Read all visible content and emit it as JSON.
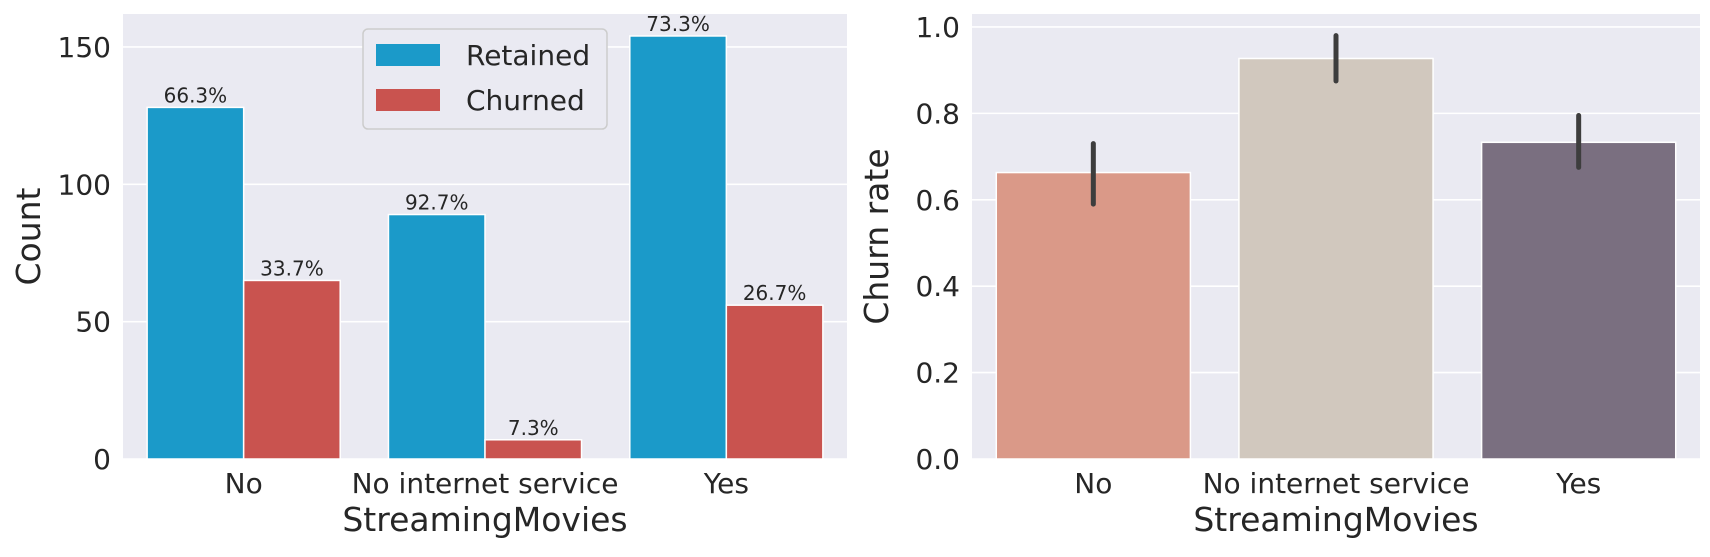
{
  "chart_data": [
    {
      "type": "bar",
      "title": "",
      "xlabel": "StreamingMovies",
      "ylabel": "Count",
      "categories": [
        "No",
        "No internet service",
        "Yes"
      ],
      "ylim": [
        0,
        162
      ],
      "yticks": [
        0,
        50,
        100,
        150
      ],
      "grid": true,
      "legend": "top-center",
      "series": [
        {
          "name": "Retained",
          "color": "#1b9ac9",
          "values": [
            128,
            89,
            154
          ],
          "labels": [
            "66.3%",
            "92.7%",
            "73.3%"
          ]
        },
        {
          "name": "Churned",
          "color": "#c9534f",
          "values": [
            65,
            7,
            56
          ],
          "labels": [
            "33.7%",
            "7.3%",
            "26.7%"
          ]
        }
      ]
    },
    {
      "type": "bar",
      "title": "",
      "xlabel": "StreamingMovies",
      "ylabel": "Churn rate",
      "categories": [
        "No",
        "No internet service",
        "Yes"
      ],
      "ylim": [
        0,
        1.03
      ],
      "yticks": [
        "0.0",
        "0.2",
        "0.4",
        "0.6",
        "0.8",
        "1.0"
      ],
      "grid": true,
      "values": [
        0.663,
        0.927,
        0.733
      ],
      "error_low": [
        0.59,
        0.875,
        0.675
      ],
      "error_high": [
        0.73,
        0.98,
        0.795
      ],
      "colors": [
        "#da9988",
        "#d1c8be",
        "#7a6f80"
      ]
    }
  ]
}
